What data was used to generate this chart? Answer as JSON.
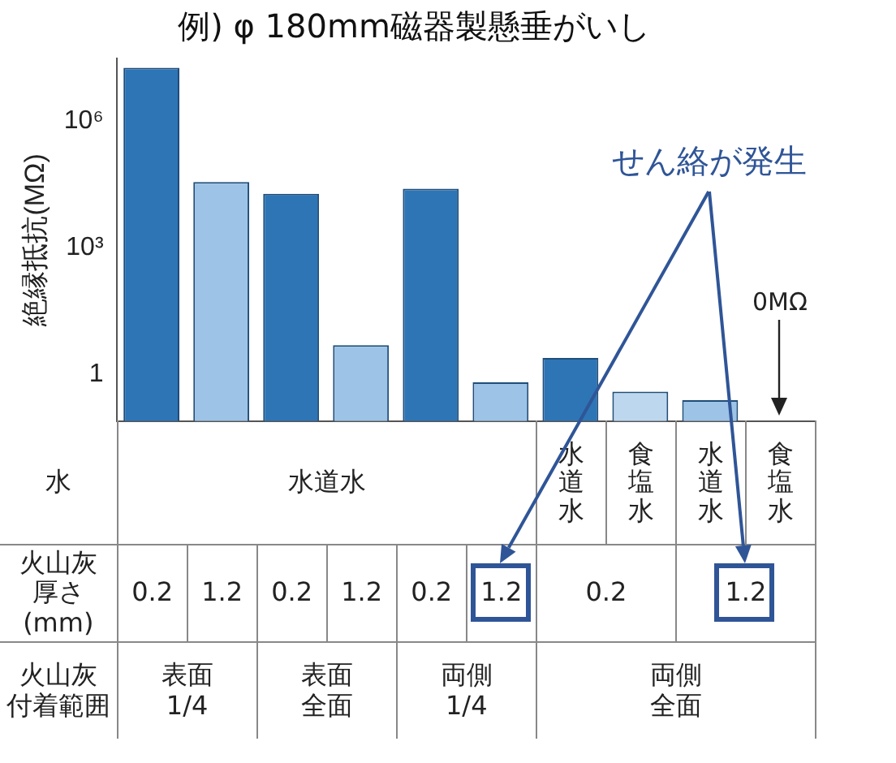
{
  "chart_data": {
    "type": "bar",
    "title": "例) φ 180mm磁器製懸垂がいし",
    "ylabel": "絶縁抵抗(MΩ)",
    "xlabel": "火山灰厚さ(mm)",
    "categories": [
      "0.2",
      "1.2",
      "0.2",
      "1.2",
      "0.2",
      "1.2",
      "0.2",
      null,
      "1.2",
      null
    ],
    "values": [
      18000000,
      36000,
      19000,
      5,
      25000,
      0.66,
      2.5,
      0.4,
      0.25,
      null
    ],
    "colors": [
      "#2e75b6",
      "#9dc3e6",
      "#2e75b6",
      "#9dc3e6",
      "#2e75b6",
      "#9dc3e6",
      "#2e75b6",
      "#bdd7ee",
      "#9dc3e6",
      "#9dc3e6"
    ],
    "log": "y",
    "ylim": [
      0.08,
      30000000
    ],
    "yticks": [
      1,
      {
        "value": 1000,
        "label": "10³"
      },
      {
        "value": 1000000,
        "label": "10⁶"
      }
    ],
    "grid": false,
    "legend": false,
    "annotations": [
      "水",
      "水道水",
      "水道水",
      "食塩水",
      "水道水",
      "食塩水",
      "火山灰",
      "付着範囲",
      "表面",
      "1/4",
      "表面",
      "全面",
      "両側",
      "1/4",
      "両側",
      "全面",
      "せん絡が発生",
      "0MΩ"
    ]
  }
}
